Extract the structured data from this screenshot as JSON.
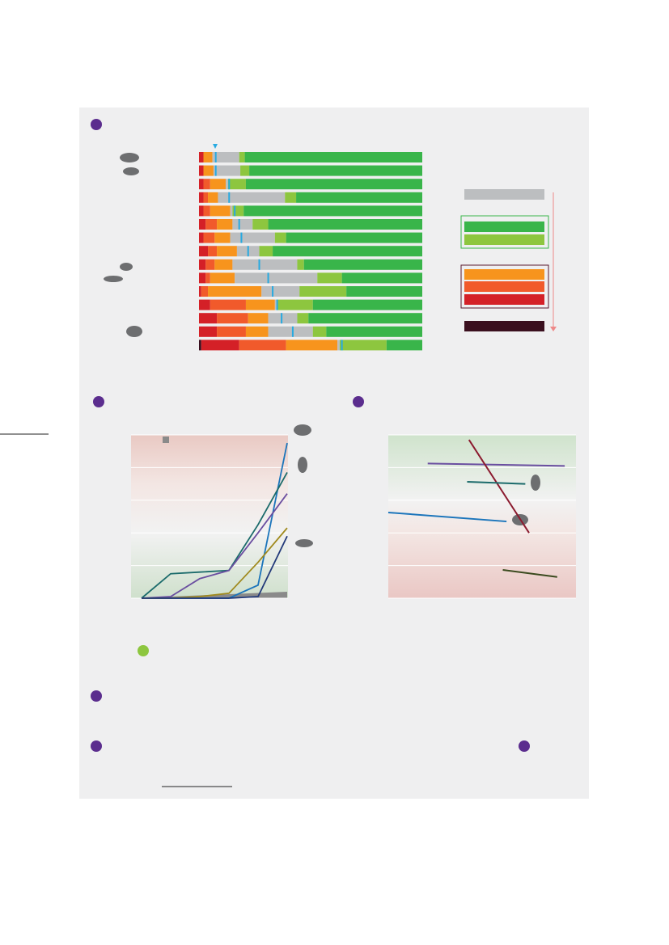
{
  "chart_data": [
    {
      "type": "stacked-barh",
      "series": [
        {
          "color": "#3a0f1e",
          "values": [
            0,
            0,
            0,
            0,
            0,
            0,
            0,
            0,
            0,
            0,
            0,
            0,
            0,
            0,
            1
          ]
        },
        {
          "color": "#d42027",
          "values": [
            2,
            2,
            2,
            2,
            2,
            3,
            2,
            4,
            3,
            3,
            1,
            5,
            8,
            8,
            17
          ]
        },
        {
          "color": "#f15a2b",
          "values": [
            0,
            0,
            3,
            2,
            3,
            5,
            5,
            4,
            4,
            2,
            3,
            16,
            14,
            13,
            21
          ]
        },
        {
          "color": "#f7941d",
          "values": [
            4,
            4.5,
            7,
            4.5,
            9,
            7,
            7,
            9,
            8,
            11,
            24,
            13,
            9,
            10,
            23
          ]
        },
        {
          "color": "#bcbec0",
          "values": [
            12,
            12,
            1,
            30,
            1,
            9,
            20,
            10,
            29,
            37,
            17,
            1,
            13,
            20,
            1
          ]
        },
        {
          "color": "#8dc63f",
          "values": [
            2.5,
            4,
            8,
            5,
            5,
            7,
            5,
            6,
            3,
            11,
            21,
            16,
            5,
            6,
            21
          ]
        },
        {
          "color": "#39b54a",
          "values": [
            79.5,
            77.5,
            79,
            56.5,
            80,
            69,
            61,
            67,
            53,
            36,
            34,
            49,
            51,
            43,
            16
          ]
        }
      ],
      "markers": [
        7.5,
        7.5,
        13.5,
        13.5,
        16,
        18,
        19,
        22,
        27,
        31,
        33,
        35,
        37,
        42,
        64
      ],
      "marker_color": "#27aae1",
      "xlim": [
        0,
        100
      ]
    },
    {
      "type": "line",
      "categories": [
        null,
        null,
        null,
        null,
        null,
        null
      ],
      "series": [
        {
          "color": "#1b75bb",
          "values": [
            0,
            0,
            0,
            0,
            8,
            95
          ]
        },
        {
          "color": "#1b6b6b",
          "values": [
            0,
            15,
            16,
            17,
            45,
            77
          ]
        },
        {
          "color": "#6a4ea0",
          "values": [
            0,
            1,
            12,
            17,
            40,
            64
          ]
        },
        {
          "color": "#a08a1e",
          "values": [
            0,
            0,
            1,
            3,
            22,
            43
          ]
        },
        {
          "color": "#233a7a",
          "values": [
            0,
            0,
            0,
            0,
            1,
            38
          ]
        }
      ],
      "ylim": [
        0,
        100
      ]
    },
    {
      "type": "segments",
      "series": [
        {
          "color": "#6a4ea0",
          "x": [
            2.1,
            9.4
          ],
          "values": [
            82.5,
            81
          ]
        },
        {
          "color": "#8b1a2e",
          "x": [
            4.3,
            7.5
          ],
          "values": [
            97,
            40
          ]
        },
        {
          "color": "#1b6b6b",
          "x": [
            4.2,
            7.3
          ],
          "values": [
            71.3,
            70
          ]
        },
        {
          "color": "#1b75bb",
          "x": [
            0,
            6.3
          ],
          "values": [
            52.5,
            47
          ]
        },
        {
          "color": "#3a4a1e",
          "x": [
            6.1,
            9
          ],
          "values": [
            17.3,
            13
          ]
        }
      ],
      "xlim": [
        0,
        10
      ],
      "ylim": [
        0,
        100
      ]
    }
  ]
}
